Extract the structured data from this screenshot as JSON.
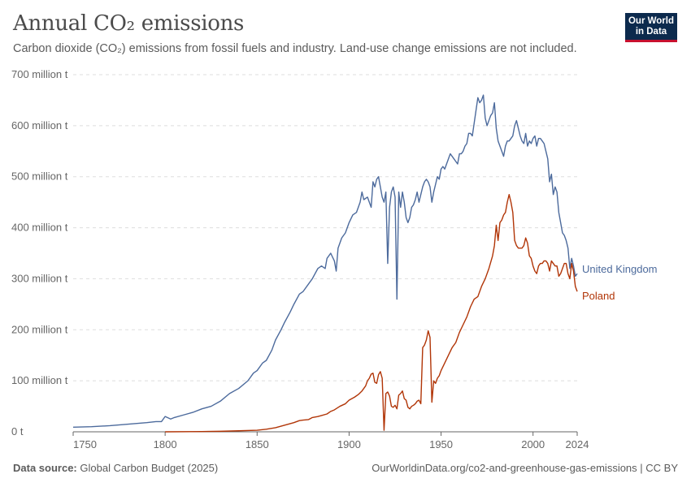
{
  "header": {
    "title": "Annual CO₂ emissions",
    "subtitle": "Carbon dioxide (CO₂) emissions from fossil fuels and industry. Land-use change emissions are not included."
  },
  "logo": {
    "line1": "Our World",
    "line2": "in Data"
  },
  "footer": {
    "source_label": "Data source:",
    "source_text": "Global Carbon Budget (2025)",
    "url_text": "OurWorldinData.org/co2-and-greenhouse-gas-emissions | CC BY"
  },
  "colors": {
    "uk": "#4c6a9c",
    "poland": "#b13507",
    "grid": "#dddddd",
    "axis": "#666666"
  },
  "chart_data": {
    "type": "line",
    "title": "Annual CO₂ emissions",
    "xlabel": "",
    "ylabel": "",
    "xlim": [
      1750,
      2024
    ],
    "ylim": [
      0,
      700
    ],
    "grid": true,
    "legend": "right end labels",
    "x_ticks": [
      {
        "value": 1750,
        "label": "1750"
      },
      {
        "value": 1800,
        "label": "1800"
      },
      {
        "value": 1850,
        "label": "1850"
      },
      {
        "value": 1900,
        "label": "1900"
      },
      {
        "value": 1950,
        "label": "1950"
      },
      {
        "value": 2000,
        "label": "2000"
      },
      {
        "value": 2024,
        "label": "2024"
      }
    ],
    "y_ticks": [
      {
        "value": 0,
        "label": "0 t"
      },
      {
        "value": 100,
        "label": "100 million t"
      },
      {
        "value": 200,
        "label": "200 million t"
      },
      {
        "value": 300,
        "label": "300 million t"
      },
      {
        "value": 400,
        "label": "400 million t"
      },
      {
        "value": 500,
        "label": "500 million t"
      },
      {
        "value": 600,
        "label": "600 million t"
      },
      {
        "value": 700,
        "label": "700 million t"
      }
    ],
    "series": [
      {
        "name": "United Kingdom",
        "color": "#4c6a9c",
        "points": [
          [
            1750,
            9
          ],
          [
            1760,
            10
          ],
          [
            1770,
            12
          ],
          [
            1780,
            15
          ],
          [
            1790,
            18
          ],
          [
            1795,
            20
          ],
          [
            1798,
            20
          ],
          [
            1800,
            30
          ],
          [
            1803,
            25
          ],
          [
            1805,
            28
          ],
          [
            1810,
            33
          ],
          [
            1815,
            38
          ],
          [
            1820,
            45
          ],
          [
            1825,
            50
          ],
          [
            1830,
            60
          ],
          [
            1835,
            75
          ],
          [
            1840,
            85
          ],
          [
            1845,
            100
          ],
          [
            1848,
            115
          ],
          [
            1850,
            120
          ],
          [
            1853,
            135
          ],
          [
            1855,
            140
          ],
          [
            1858,
            160
          ],
          [
            1860,
            180
          ],
          [
            1863,
            200
          ],
          [
            1865,
            215
          ],
          [
            1868,
            235
          ],
          [
            1870,
            250
          ],
          [
            1873,
            270
          ],
          [
            1875,
            275
          ],
          [
            1878,
            290
          ],
          [
            1880,
            300
          ],
          [
            1883,
            320
          ],
          [
            1885,
            325
          ],
          [
            1887,
            320
          ],
          [
            1888,
            340
          ],
          [
            1890,
            350
          ],
          [
            1892,
            335
          ],
          [
            1893,
            315
          ],
          [
            1894,
            360
          ],
          [
            1896,
            380
          ],
          [
            1898,
            390
          ],
          [
            1900,
            410
          ],
          [
            1902,
            425
          ],
          [
            1904,
            430
          ],
          [
            1906,
            450
          ],
          [
            1907,
            470
          ],
          [
            1908,
            455
          ],
          [
            1910,
            460
          ],
          [
            1912,
            440
          ],
          [
            1913,
            490
          ],
          [
            1914,
            480
          ],
          [
            1915,
            495
          ],
          [
            1916,
            500
          ],
          [
            1917,
            480
          ],
          [
            1918,
            460
          ],
          [
            1919,
            450
          ],
          [
            1920,
            470
          ],
          [
            1921,
            330
          ],
          [
            1922,
            440
          ],
          [
            1923,
            470
          ],
          [
            1924,
            480
          ],
          [
            1925,
            460
          ],
          [
            1926,
            260
          ],
          [
            1927,
            470
          ],
          [
            1928,
            440
          ],
          [
            1929,
            470
          ],
          [
            1930,
            450
          ],
          [
            1931,
            420
          ],
          [
            1932,
            410
          ],
          [
            1933,
            420
          ],
          [
            1934,
            440
          ],
          [
            1935,
            445
          ],
          [
            1936,
            455
          ],
          [
            1937,
            470
          ],
          [
            1938,
            450
          ],
          [
            1939,
            465
          ],
          [
            1940,
            480
          ],
          [
            1941,
            490
          ],
          [
            1942,
            495
          ],
          [
            1943,
            490
          ],
          [
            1944,
            480
          ],
          [
            1945,
            450
          ],
          [
            1946,
            470
          ],
          [
            1947,
            485
          ],
          [
            1948,
            500
          ],
          [
            1949,
            495
          ],
          [
            1950,
            515
          ],
          [
            1951,
            520
          ],
          [
            1952,
            515
          ],
          [
            1953,
            525
          ],
          [
            1954,
            535
          ],
          [
            1955,
            545
          ],
          [
            1956,
            540
          ],
          [
            1957,
            535
          ],
          [
            1958,
            530
          ],
          [
            1959,
            525
          ],
          [
            1960,
            545
          ],
          [
            1961,
            545
          ],
          [
            1962,
            550
          ],
          [
            1963,
            560
          ],
          [
            1964,
            565
          ],
          [
            1965,
            585
          ],
          [
            1966,
            585
          ],
          [
            1967,
            580
          ],
          [
            1968,
            605
          ],
          [
            1969,
            630
          ],
          [
            1970,
            655
          ],
          [
            1971,
            645
          ],
          [
            1972,
            650
          ],
          [
            1973,
            660
          ],
          [
            1974,
            615
          ],
          [
            1975,
            600
          ],
          [
            1976,
            610
          ],
          [
            1977,
            620
          ],
          [
            1978,
            625
          ],
          [
            1979,
            645
          ],
          [
            1980,
            595
          ],
          [
            1981,
            570
          ],
          [
            1982,
            560
          ],
          [
            1983,
            550
          ],
          [
            1984,
            540
          ],
          [
            1985,
            560
          ],
          [
            1986,
            570
          ],
          [
            1987,
            570
          ],
          [
            1988,
            575
          ],
          [
            1989,
            580
          ],
          [
            1990,
            600
          ],
          [
            1991,
            610
          ],
          [
            1992,
            595
          ],
          [
            1993,
            580
          ],
          [
            1994,
            570
          ],
          [
            1995,
            565
          ],
          [
            1996,
            585
          ],
          [
            1997,
            560
          ],
          [
            1998,
            570
          ],
          [
            1999,
            565
          ],
          [
            2000,
            575
          ],
          [
            2001,
            580
          ],
          [
            2002,
            560
          ],
          [
            2003,
            575
          ],
          [
            2004,
            575
          ],
          [
            2005,
            570
          ],
          [
            2006,
            565
          ],
          [
            2007,
            550
          ],
          [
            2008,
            535
          ],
          [
            2009,
            490
          ],
          [
            2010,
            505
          ],
          [
            2011,
            465
          ],
          [
            2012,
            480
          ],
          [
            2013,
            470
          ],
          [
            2014,
            430
          ],
          [
            2015,
            410
          ],
          [
            2016,
            390
          ],
          [
            2017,
            385
          ],
          [
            2018,
            375
          ],
          [
            2019,
            360
          ],
          [
            2020,
            320
          ],
          [
            2021,
            340
          ],
          [
            2022,
            325
          ],
          [
            2023,
            305
          ],
          [
            2024,
            310
          ]
        ]
      },
      {
        "name": "Poland",
        "color": "#b13507",
        "points": [
          [
            1800,
            0
          ],
          [
            1820,
            0.5
          ],
          [
            1830,
            1
          ],
          [
            1840,
            2
          ],
          [
            1850,
            3
          ],
          [
            1855,
            5
          ],
          [
            1860,
            8
          ],
          [
            1865,
            13
          ],
          [
            1870,
            18
          ],
          [
            1873,
            22
          ],
          [
            1875,
            23
          ],
          [
            1878,
            24
          ],
          [
            1880,
            28
          ],
          [
            1883,
            30
          ],
          [
            1885,
            32
          ],
          [
            1888,
            35
          ],
          [
            1890,
            40
          ],
          [
            1892,
            43
          ],
          [
            1895,
            50
          ],
          [
            1898,
            55
          ],
          [
            1900,
            62
          ],
          [
            1903,
            68
          ],
          [
            1905,
            73
          ],
          [
            1907,
            80
          ],
          [
            1909,
            90
          ],
          [
            1910,
            100
          ],
          [
            1911,
            105
          ],
          [
            1912,
            113
          ],
          [
            1913,
            115
          ],
          [
            1914,
            97
          ],
          [
            1915,
            95
          ],
          [
            1916,
            112
          ],
          [
            1917,
            118
          ],
          [
            1918,
            105
          ],
          [
            1919,
            3
          ],
          [
            1920,
            75
          ],
          [
            1921,
            78
          ],
          [
            1922,
            70
          ],
          [
            1923,
            50
          ],
          [
            1924,
            48
          ],
          [
            1925,
            52
          ],
          [
            1926,
            45
          ],
          [
            1927,
            72
          ],
          [
            1928,
            75
          ],
          [
            1929,
            80
          ],
          [
            1930,
            65
          ],
          [
            1931,
            62
          ],
          [
            1932,
            48
          ],
          [
            1933,
            45
          ],
          [
            1934,
            50
          ],
          [
            1935,
            52
          ],
          [
            1936,
            55
          ],
          [
            1937,
            60
          ],
          [
            1938,
            62
          ],
          [
            1939,
            55
          ],
          [
            1940,
            165
          ],
          [
            1941,
            170
          ],
          [
            1942,
            180
          ],
          [
            1943,
            198
          ],
          [
            1944,
            185
          ],
          [
            1945,
            58
          ],
          [
            1946,
            100
          ],
          [
            1947,
            95
          ],
          [
            1948,
            105
          ],
          [
            1949,
            110
          ],
          [
            1950,
            120
          ],
          [
            1952,
            135
          ],
          [
            1954,
            150
          ],
          [
            1956,
            165
          ],
          [
            1958,
            175
          ],
          [
            1960,
            195
          ],
          [
            1962,
            210
          ],
          [
            1964,
            225
          ],
          [
            1966,
            245
          ],
          [
            1968,
            260
          ],
          [
            1970,
            265
          ],
          [
            1972,
            285
          ],
          [
            1974,
            300
          ],
          [
            1976,
            320
          ],
          [
            1978,
            345
          ],
          [
            1979,
            365
          ],
          [
            1980,
            405
          ],
          [
            1981,
            375
          ],
          [
            1982,
            410
          ],
          [
            1983,
            415
          ],
          [
            1984,
            425
          ],
          [
            1985,
            430
          ],
          [
            1986,
            450
          ],
          [
            1987,
            465
          ],
          [
            1988,
            450
          ],
          [
            1989,
            430
          ],
          [
            1990,
            375
          ],
          [
            1991,
            365
          ],
          [
            1992,
            360
          ],
          [
            1993,
            360
          ],
          [
            1994,
            360
          ],
          [
            1995,
            365
          ],
          [
            1996,
            380
          ],
          [
            1997,
            370
          ],
          [
            1998,
            345
          ],
          [
            1999,
            340
          ],
          [
            2000,
            325
          ],
          [
            2001,
            315
          ],
          [
            2002,
            310
          ],
          [
            2003,
            325
          ],
          [
            2004,
            330
          ],
          [
            2005,
            330
          ],
          [
            2006,
            335
          ],
          [
            2007,
            335
          ],
          [
            2008,
            330
          ],
          [
            2009,
            315
          ],
          [
            2010,
            335
          ],
          [
            2011,
            330
          ],
          [
            2012,
            325
          ],
          [
            2013,
            325
          ],
          [
            2014,
            305
          ],
          [
            2015,
            310
          ],
          [
            2016,
            320
          ],
          [
            2017,
            330
          ],
          [
            2018,
            330
          ],
          [
            2019,
            310
          ],
          [
            2020,
            300
          ],
          [
            2021,
            330
          ],
          [
            2022,
            315
          ],
          [
            2023,
            285
          ],
          [
            2024,
            275
          ]
        ]
      }
    ]
  }
}
